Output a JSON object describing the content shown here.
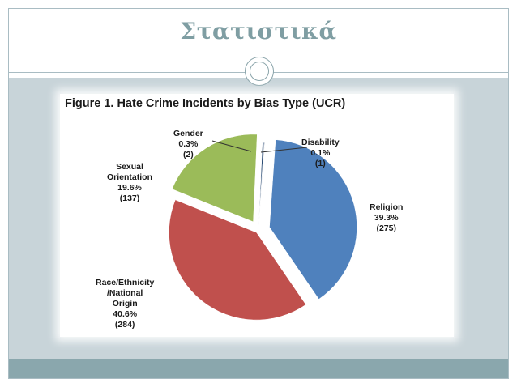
{
  "slide": {
    "title": "Στατιστικά"
  },
  "chart_data": {
    "type": "pie",
    "title": "Figure 1. Hate Crime Incidents by Bias Type (UCR)",
    "slices": [
      {
        "name": "Religion",
        "percent": 39.3,
        "count": 275,
        "pct_label": "39.3%",
        "count_label": "(275)",
        "color": "#4f81bd",
        "label_lines": [
          "Religion"
        ]
      },
      {
        "name": "Race/Ethnicity/National Origin",
        "percent": 40.6,
        "count": 284,
        "pct_label": "40.6%",
        "count_label": "(284)",
        "color": "#c0504d",
        "label_lines": [
          "Race/Ethnicity",
          "/National",
          "Origin"
        ]
      },
      {
        "name": "Sexual Orientation",
        "percent": 19.6,
        "count": 137,
        "pct_label": "19.6%",
        "count_label": "(137)",
        "color": "#9bbb59",
        "label_lines": [
          "Sexual",
          "Orientation"
        ]
      },
      {
        "name": "Gender",
        "percent": 0.3,
        "count": 2,
        "pct_label": "0.3%",
        "count_label": "(2)",
        "color": "#2c4d75",
        "label_lines": [
          "Gender"
        ]
      },
      {
        "name": "Disability",
        "percent": 0.1,
        "count": 1,
        "pct_label": "0.1%",
        "count_label": "(1)",
        "color": "#1f3864",
        "label_lines": [
          "Disability"
        ]
      }
    ]
  }
}
